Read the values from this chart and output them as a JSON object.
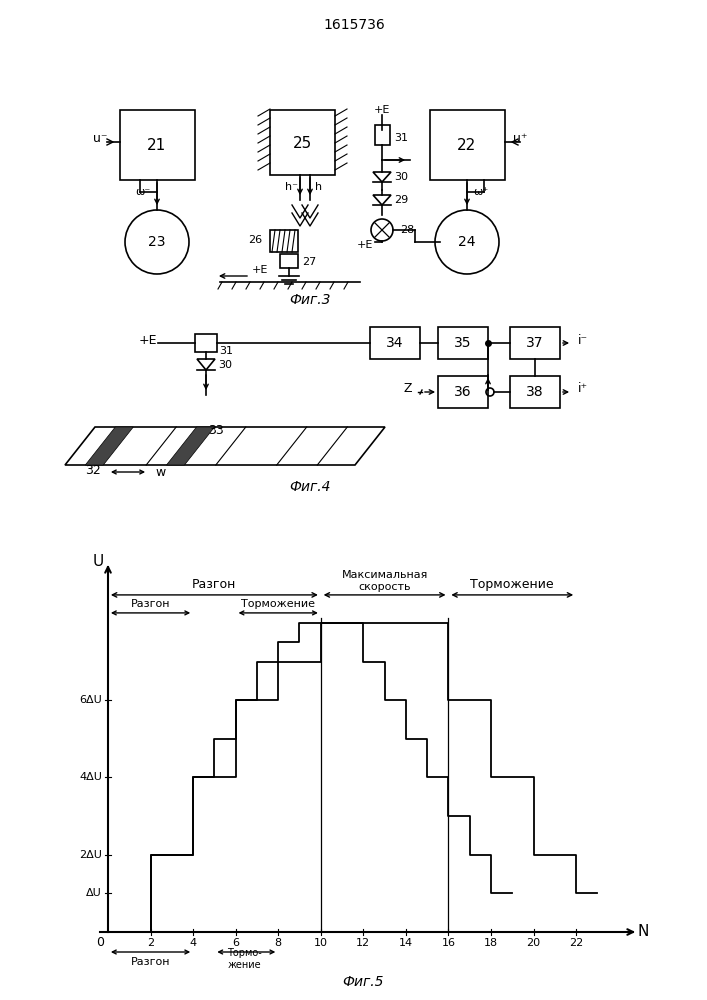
{
  "title": "1615736",
  "fig3_label": "Фиг.3",
  "fig4_label": "Фиг.4",
  "fig5_label": "Фиг.5",
  "bg_color": "#ffffff",
  "line_color": "#000000"
}
